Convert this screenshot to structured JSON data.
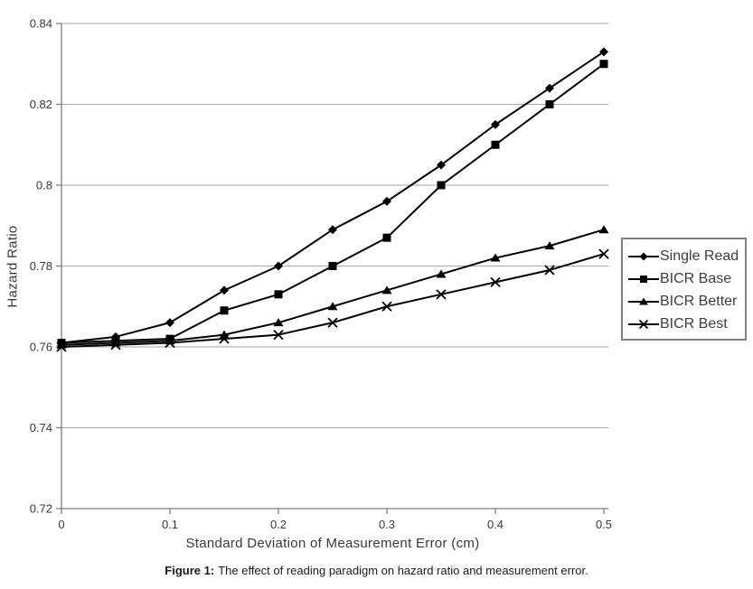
{
  "caption": {
    "label": "Figure 1:",
    "text": "The effect of reading paradigm on hazard ratio and measurement error."
  },
  "chart_data": {
    "type": "line",
    "title": "",
    "xlabel": "Standard Deviation of Measurement Error (cm)",
    "ylabel": "Hazard Ratio",
    "xlim": [
      0,
      0.5
    ],
    "ylim": [
      0.72,
      0.84
    ],
    "x_ticks": [
      0,
      0.1,
      0.2,
      0.3,
      0.4,
      0.5
    ],
    "x_tick_labels": [
      "0",
      "0.1",
      "0.2",
      "0.3",
      "0.4",
      "0.5"
    ],
    "y_ticks": [
      0.72,
      0.74,
      0.76,
      0.78,
      0.8,
      0.82,
      0.84
    ],
    "y_tick_labels": [
      "0.72",
      "0.74",
      "0.76",
      "0.78",
      "0.8",
      "0.82",
      "0.84"
    ],
    "grid": "horizontal",
    "legend_position": "right",
    "x": [
      0,
      0.05,
      0.1,
      0.15,
      0.2,
      0.25,
      0.3,
      0.35,
      0.4,
      0.45,
      0.5
    ],
    "series": [
      {
        "name": "Single Read",
        "marker": "diamond",
        "values": [
          0.761,
          0.7625,
          0.766,
          0.774,
          0.78,
          0.789,
          0.796,
          0.805,
          0.815,
          0.824,
          0.833
        ]
      },
      {
        "name": "BICR Base",
        "marker": "square",
        "values": [
          0.761,
          0.7615,
          0.762,
          0.769,
          0.773,
          0.78,
          0.787,
          0.8,
          0.81,
          0.82,
          0.83
        ]
      },
      {
        "name": "BICR Better",
        "marker": "triangle",
        "values": [
          0.7605,
          0.761,
          0.7615,
          0.763,
          0.766,
          0.77,
          0.774,
          0.778,
          0.782,
          0.785,
          0.789
        ]
      },
      {
        "name": "BICR Best",
        "marker": "x",
        "values": [
          0.76,
          0.7605,
          0.761,
          0.762,
          0.763,
          0.766,
          0.77,
          0.773,
          0.776,
          0.779,
          0.783
        ]
      }
    ],
    "colors": {
      "series": "#000000",
      "grid": "#a6a6a6",
      "axis": "#7f7f7f",
      "tick_text": "#383838"
    }
  }
}
